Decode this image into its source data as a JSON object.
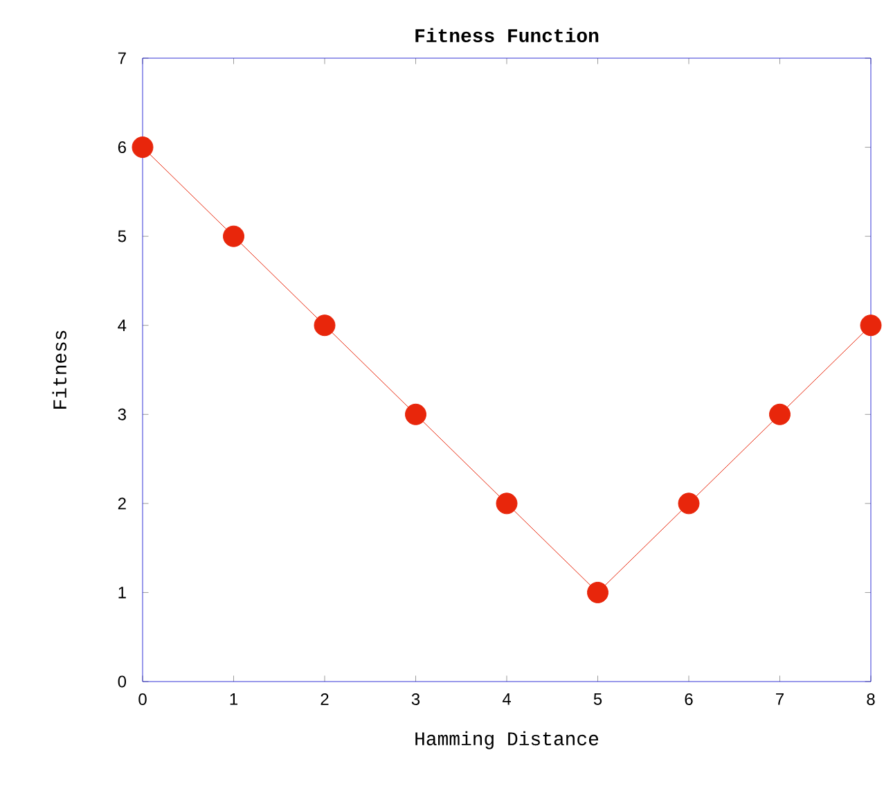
{
  "chart_data": {
    "type": "line",
    "title": "Fitness Function",
    "xlabel": "Hamming Distance",
    "ylabel": "Fitness",
    "x": [
      0,
      1,
      2,
      3,
      4,
      5,
      6,
      7,
      8
    ],
    "series": [
      {
        "color": "#e8260b",
        "values": [
          6,
          5,
          4,
          3,
          2,
          1,
          2,
          3,
          4
        ]
      }
    ],
    "marker": "circle",
    "line_style": "solid",
    "xlim": [
      0,
      8
    ],
    "ylim": [
      0,
      7
    ],
    "xticks": [
      0,
      1,
      2,
      3,
      4,
      5,
      6,
      7,
      8
    ],
    "yticks": [
      0,
      1,
      2,
      3,
      4,
      5,
      6,
      7
    ]
  }
}
